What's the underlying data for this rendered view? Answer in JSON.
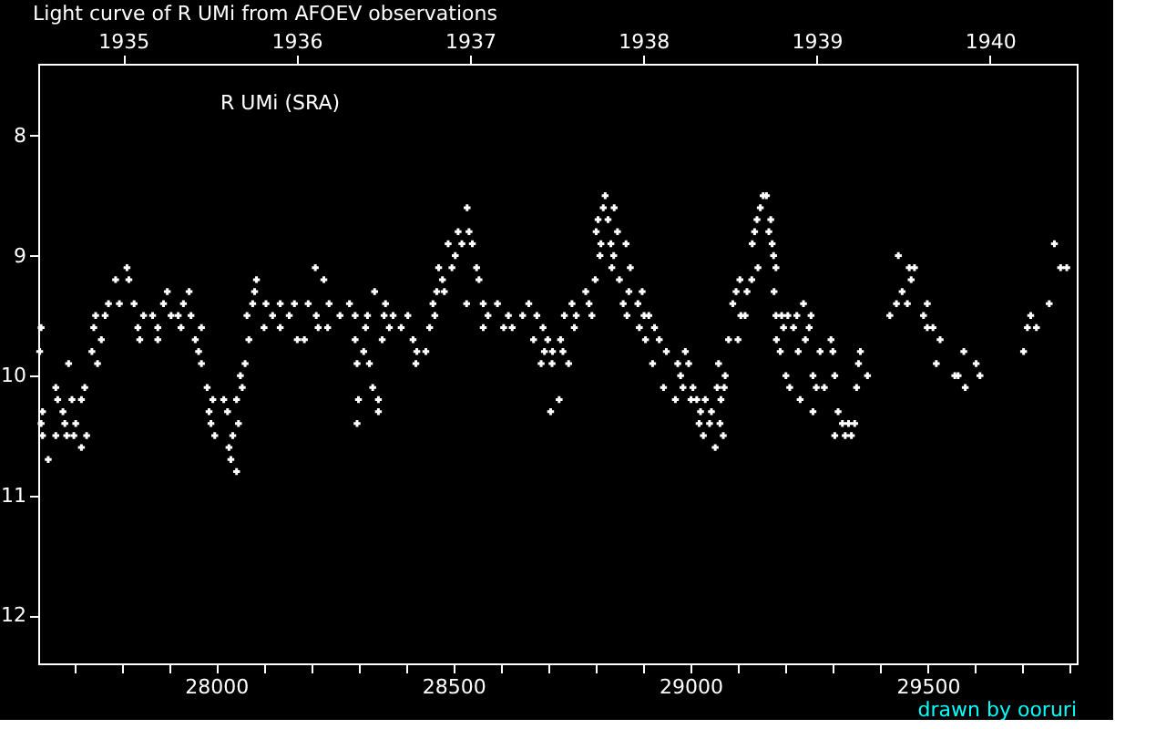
{
  "chart_data": {
    "type": "scatter",
    "title": "Light curve of R UMi from AFOEV observations",
    "annotations": [
      "R UMi (SRA)",
      "drawn by ooruri"
    ],
    "marker": "cross",
    "grid": false,
    "xlim": [
      27625,
      29814
    ],
    "ylim": [
      12.4,
      7.4
    ],
    "xticks": [
      {
        "value": 27700,
        "label": null
      },
      {
        "value": 27800,
        "label": null
      },
      {
        "value": 27900,
        "label": null
      },
      28000,
      {
        "value": 28100,
        "label": null
      },
      {
        "value": 28200,
        "label": null
      },
      {
        "value": 28300,
        "label": null
      },
      {
        "value": 28400,
        "label": null
      },
      28500,
      {
        "value": 28600,
        "label": null
      },
      {
        "value": 28700,
        "label": null
      },
      {
        "value": 28800,
        "label": null
      },
      {
        "value": 28900,
        "label": null
      },
      29000,
      {
        "value": 29100,
        "label": null
      },
      {
        "value": 29200,
        "label": null
      },
      {
        "value": 29300,
        "label": null
      },
      {
        "value": 29400,
        "label": null
      },
      29500,
      {
        "value": 29600,
        "label": null
      },
      {
        "value": 29700,
        "label": null
      },
      {
        "value": 29800,
        "label": null
      }
    ],
    "yticks": [
      8,
      9,
      10,
      11,
      12
    ],
    "x2lim": [
      1934.51,
      1940.5
    ],
    "x2ticks": [
      1935,
      1936,
      1937,
      1938,
      1939,
      1940
    ],
    "x": [
      27631,
      27628,
      27646,
      27634,
      27631,
      27634,
      27662,
      27666,
      27662,
      27681,
      27677,
      27689,
      27696,
      27685,
      27700,
      27704,
      27716,
      27716,
      27723,
      27727,
      27738,
      27742,
      27746,
      27750,
      27758,
      27766,
      27773,
      27788,
      27796,
      27812,
      27816,
      27827,
      27835,
      27839,
      27847,
      27866,
      27877,
      27877,
      27889,
      27897,
      27905,
      27920,
      27926,
      27931,
      27943,
      27947,
      27956,
      27963,
      27969,
      27969,
      27981,
      27993,
      27985,
      27989,
      27997,
      28016,
      28024,
      28027,
      28031,
      28043,
      28035,
      28043,
      28047,
      28055,
      28051,
      28061,
      28069,
      28065,
      28081,
      28085,
      28077,
      28101,
      28105,
      28119,
      28135,
      28135,
      28154,
      28165,
      28171,
      28186,
      28194,
      28209,
      28211,
      28215,
      28227,
      28235,
      28238,
      28261,
      28281,
      28293,
      28297,
      28293,
      28300,
      28297,
      28311,
      28319,
      28323,
      28315,
      28334,
      28330,
      28342,
      28342,
      28350,
      28354,
      28357,
      28373,
      28365,
      28390,
      28404,
      28415,
      28423,
      28421,
      28442,
      28450,
      28457,
      28465,
      28461,
      28469,
      28477,
      28481,
      28489,
      28497,
      28504,
      28510,
      28518,
      28529,
      28528,
      28533,
      28540,
      28549,
      28554,
      28563,
      28563,
      28573,
      28593,
      28606,
      28624,
      28616,
      28646,
      28659,
      28669,
      28676,
      28685,
      28689,
      28692,
      28699,
      28705,
      28708,
      28709,
      28723,
      28726,
      28731,
      28734,
      28743,
      28750,
      28755,
      28759,
      28779,
      28786,
      28792,
      28799,
      28801,
      28805,
      28809,
      28811,
      28816,
      28820,
      28826,
      28832,
      28834,
      28838,
      28839,
      28846,
      28850,
      28858,
      28864,
      28866,
      28870,
      28873,
      28889,
      28892,
      28898,
      28902,
      28905,
      28912,
      28920,
      28924,
      28934,
      28943,
      28949,
      28968,
      28973,
      28979,
      28984,
      28989,
      28996,
      29001,
      29005,
      29013,
      29018,
      29021,
      29027,
      29031,
      29040,
      29044,
      29052,
      29059,
      29056,
      29062,
      29064,
      29069,
      29073,
      29071,
      29080,
      29089,
      29096,
      29100,
      29104,
      29106,
      29115,
      29119,
      29129,
      29130,
      29135,
      29140,
      29142,
      29147,
      29153,
      29160,
      29165,
      29169,
      29172,
      29175,
      29176,
      29180,
      29181,
      29180,
      29189,
      29192,
      29196,
      29201,
      29205,
      29209,
      29217,
      29224,
      29227,
      29231,
      29238,
      29242,
      29250,
      29254,
      29258,
      29258,
      29265,
      29273,
      29282,
      29296,
      29300,
      29304,
      29304,
      29311,
      29320,
      29326,
      29333,
      29339,
      29346,
      29350,
      29354,
      29358,
      29373,
      29420,
      29434,
      29438,
      29446,
      29457,
      29461,
      29465,
      29472,
      29491,
      29499,
      29499,
      29511,
      29518,
      29526,
      29557,
      29564,
      29576,
      29579,
      29602,
      29610,
      29702,
      29710,
      29717,
      29729,
      29756,
      29767,
      29780,
      29793
    ],
    "series": [
      {
        "color": "#ffffff",
        "values": [
          9.6,
          9.8,
          10.7,
          10.3,
          10.4,
          10.5,
          10.1,
          10.2,
          10.5,
          10.4,
          10.3,
          9.9,
          10.2,
          10.5,
          10.5,
          10.4,
          10.6,
          10.2,
          10.1,
          10.5,
          9.8,
          9.6,
          9.5,
          9.9,
          9.7,
          9.5,
          9.4,
          9.2,
          9.4,
          9.1,
          9.2,
          9.4,
          9.6,
          9.7,
          9.5,
          9.5,
          9.6,
          9.7,
          9.4,
          9.3,
          9.5,
          9.5,
          9.6,
          9.4,
          9.3,
          9.5,
          9.7,
          9.8,
          9.6,
          9.9,
          10.1,
          10.2,
          10.3,
          10.4,
          10.5,
          10.2,
          10.3,
          10.6,
          10.7,
          10.8,
          10.5,
          10.2,
          10.4,
          10.1,
          10.0,
          9.9,
          9.7,
          9.5,
          9.3,
          9.2,
          9.4,
          9.6,
          9.4,
          9.5,
          9.6,
          9.4,
          9.5,
          9.4,
          9.7,
          9.7,
          9.4,
          9.1,
          9.5,
          9.6,
          9.2,
          9.6,
          9.4,
          9.5,
          9.4,
          9.5,
          9.9,
          9.7,
          10.2,
          10.4,
          9.8,
          9.5,
          9.9,
          9.6,
          9.3,
          10.1,
          10.2,
          10.3,
          9.7,
          9.5,
          9.4,
          9.5,
          9.6,
          9.6,
          9.5,
          9.7,
          9.8,
          9.9,
          9.8,
          9.6,
          9.4,
          9.3,
          9.5,
          9.1,
          9.2,
          9.3,
          8.9,
          9.1,
          9.0,
          8.8,
          8.9,
          8.6,
          9.4,
          8.8,
          8.9,
          9.1,
          9.2,
          9.4,
          9.6,
          9.5,
          9.4,
          9.6,
          9.6,
          9.5,
          9.5,
          9.4,
          9.7,
          9.5,
          9.9,
          9.6,
          9.8,
          9.7,
          10.3,
          9.9,
          9.8,
          10.2,
          9.7,
          9.8,
          9.5,
          9.9,
          9.4,
          9.6,
          9.5,
          9.3,
          9.4,
          9.5,
          9.2,
          8.8,
          8.7,
          9.0,
          8.9,
          8.6,
          8.5,
          8.7,
          8.9,
          9.1,
          9.0,
          8.6,
          8.8,
          9.2,
          9.4,
          8.9,
          9.5,
          9.3,
          9.1,
          9.4,
          9.6,
          9.3,
          9.5,
          9.7,
          9.5,
          9.9,
          9.6,
          9.7,
          10.1,
          9.8,
          10.2,
          9.9,
          10.0,
          10.1,
          9.8,
          9.9,
          10.2,
          10.1,
          10.2,
          10.4,
          10.3,
          10.5,
          10.2,
          10.4,
          10.3,
          10.6,
          9.9,
          10.1,
          10.4,
          10.2,
          10.5,
          10.0,
          10.1,
          9.7,
          9.4,
          9.3,
          9.7,
          9.2,
          9.5,
          9.5,
          9.3,
          9.2,
          8.9,
          8.8,
          8.7,
          9.1,
          8.6,
          8.5,
          8.5,
          8.8,
          8.7,
          8.9,
          9.0,
          9.3,
          9.1,
          9.7,
          9.5,
          9.8,
          9.5,
          9.6,
          10.0,
          9.5,
          10.1,
          9.6,
          9.5,
          9.8,
          10.2,
          9.4,
          9.7,
          9.6,
          9.5,
          10.0,
          10.3,
          10.1,
          9.8,
          10.1,
          9.7,
          9.8,
          10.0,
          10.5,
          10.3,
          10.4,
          10.5,
          10.4,
          10.5,
          10.4,
          10.1,
          9.9,
          9.8,
          10.0,
          9.5,
          9.4,
          9.0,
          9.3,
          9.4,
          9.1,
          9.2,
          9.1,
          9.5,
          9.4,
          9.6,
          9.6,
          9.9,
          9.7,
          10.0,
          10.0,
          9.8,
          10.1,
          9.9,
          10.0,
          9.8,
          9.6,
          9.5,
          9.6,
          9.4,
          8.9,
          9.1,
          9.1
        ]
      }
    ]
  }
}
